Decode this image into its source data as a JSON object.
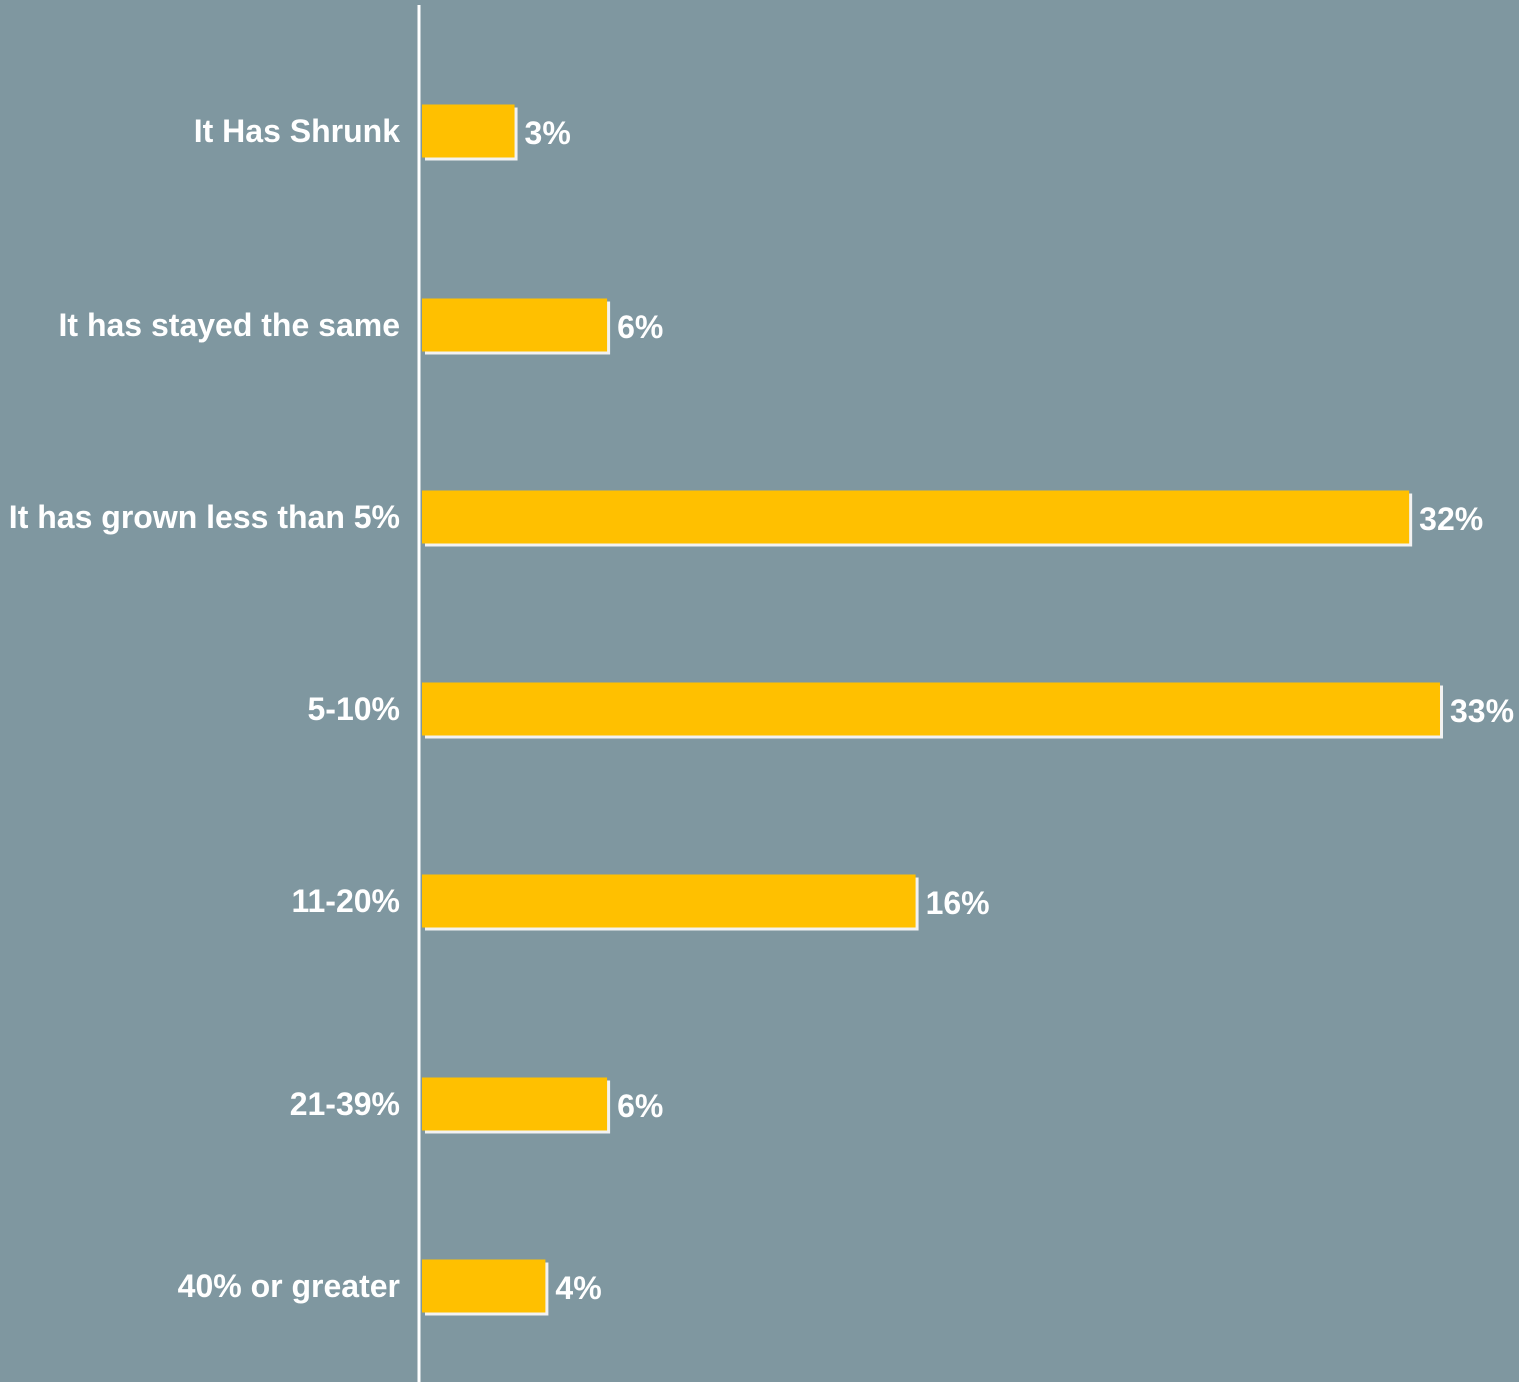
{
  "colors": {
    "background": "#7f97a0",
    "bar": "#ffc000",
    "bar_shadow": "#f2f2f2",
    "axis": "#ffffff",
    "text": "#ffffff"
  },
  "chart_data": {
    "type": "bar",
    "orientation": "horizontal",
    "title": "",
    "xlabel": "",
    "ylabel": "",
    "categories": [
      "It Has Shrunk",
      "It has stayed the same",
      "It has grown less than 5%",
      "5-10%",
      "11-20%",
      "21-39%",
      "40% or greater"
    ],
    "values": [
      3,
      6,
      32,
      33,
      16,
      6,
      4
    ],
    "value_labels": [
      "3%",
      "6%",
      "32%",
      "33%",
      "16%",
      "6%",
      "4%"
    ],
    "unit": "%",
    "grid": false,
    "legend": "none"
  }
}
